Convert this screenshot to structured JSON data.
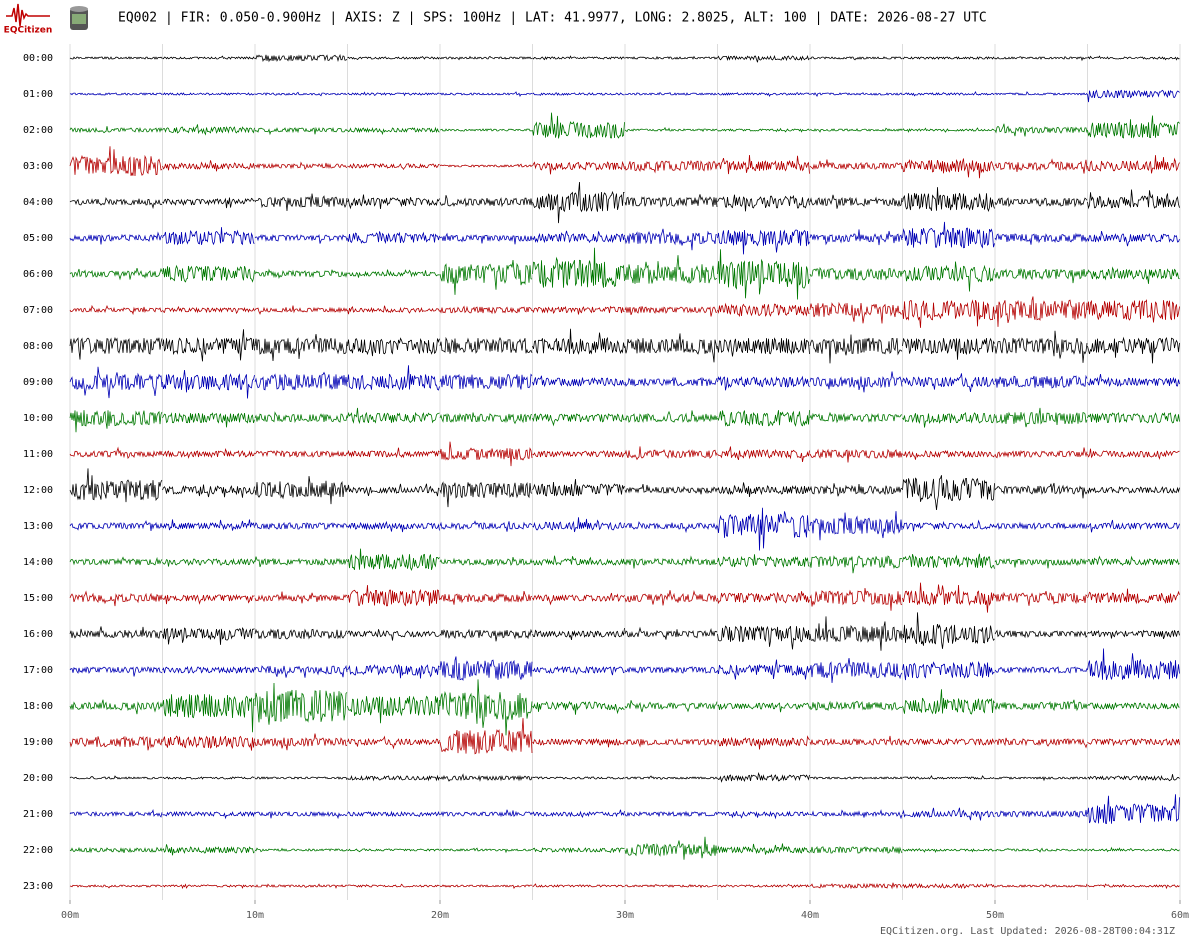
{
  "chart_data": {
    "type": "helicorder",
    "title": "EQ002 | FIR: 0.050-0.900Hz | AXIS: Z | SPS: 100Hz | LAT: 41.9977, LONG: 2.8025, ALT: 100 | DATE: 2026-08-27 UTC",
    "logo_text": "EQCitizen",
    "footer": "EQCitizen.org. Last Updated: 2026-08-28T00:04:31Z",
    "xlim": [
      0,
      60
    ],
    "xticks": [
      {
        "value": 0,
        "label": "00m"
      },
      {
        "value": 10,
        "label": "10m"
      },
      {
        "value": 20,
        "label": "20m"
      },
      {
        "value": 30,
        "label": "30m"
      },
      {
        "value": 40,
        "label": "40m"
      },
      {
        "value": 50,
        "label": "50m"
      },
      {
        "value": 60,
        "label": "60m"
      }
    ],
    "x": [
      0,
      5,
      10,
      15,
      20,
      25,
      30,
      35,
      40,
      45,
      50,
      55
    ],
    "grid": true,
    "series": [
      {
        "name": "00:00",
        "color": "#000000",
        "values": [
          1,
          1,
          3,
          1,
          1,
          1,
          1,
          2,
          1,
          1,
          1,
          1
        ]
      },
      {
        "name": "01:00",
        "color": "#0000b4",
        "values": [
          1,
          1,
          1,
          1,
          1,
          1,
          1,
          1,
          1,
          1,
          1,
          4
        ]
      },
      {
        "name": "02:00",
        "color": "#007800",
        "values": [
          2,
          3,
          2,
          2,
          1,
          8,
          1,
          1,
          1,
          1,
          3,
          8
        ]
      },
      {
        "name": "03:00",
        "color": "#b40000",
        "values": [
          10,
          3,
          2,
          2,
          1,
          4,
          5,
          5,
          3,
          6,
          4,
          5
        ]
      },
      {
        "name": "04:00",
        "color": "#000000",
        "values": [
          3,
          3,
          5,
          4,
          4,
          10,
          5,
          6,
          4,
          9,
          4,
          6
        ]
      },
      {
        "name": "05:00",
        "color": "#0000b4",
        "values": [
          3,
          7,
          3,
          5,
          3,
          4,
          6,
          8,
          4,
          10,
          4,
          4
        ]
      },
      {
        "name": "06:00",
        "color": "#007800",
        "values": [
          3,
          8,
          3,
          2,
          10,
          14,
          10,
          14,
          6,
          8,
          5,
          5
        ]
      },
      {
        "name": "07:00",
        "color": "#b40000",
        "values": [
          2,
          2,
          2,
          2,
          3,
          3,
          3,
          6,
          7,
          10,
          10,
          10
        ]
      },
      {
        "name": "08:00",
        "color": "#000000",
        "values": [
          8,
          8,
          8,
          8,
          8,
          8,
          8,
          8,
          8,
          8,
          8,
          8
        ]
      },
      {
        "name": "09:00",
        "color": "#0000b4",
        "values": [
          8,
          8,
          8,
          8,
          8,
          4,
          4,
          5,
          5,
          5,
          6,
          4
        ]
      },
      {
        "name": "10:00",
        "color": "#007800",
        "values": [
          8,
          5,
          4,
          5,
          4,
          4,
          4,
          8,
          4,
          5,
          6,
          5
        ]
      },
      {
        "name": "11:00",
        "color": "#b40000",
        "values": [
          3,
          3,
          3,
          3,
          6,
          3,
          4,
          4,
          4,
          3,
          3,
          3
        ]
      },
      {
        "name": "12:00",
        "color": "#000000",
        "values": [
          10,
          4,
          8,
          3,
          8,
          6,
          3,
          4,
          4,
          12,
          4,
          3
        ]
      },
      {
        "name": "13:00",
        "color": "#0000b4",
        "values": [
          3,
          3,
          3,
          3,
          3,
          4,
          3,
          12,
          8,
          3,
          3,
          3
        ]
      },
      {
        "name": "14:00",
        "color": "#007800",
        "values": [
          3,
          3,
          3,
          8,
          3,
          3,
          3,
          5,
          6,
          6,
          3,
          3
        ]
      },
      {
        "name": "15:00",
        "color": "#b40000",
        "values": [
          4,
          3,
          3,
          8,
          4,
          3,
          4,
          5,
          7,
          7,
          5,
          5
        ]
      },
      {
        "name": "16:00",
        "color": "#000000",
        "values": [
          4,
          6,
          5,
          3,
          4,
          3,
          3,
          8,
          8,
          10,
          3,
          3
        ]
      },
      {
        "name": "17:00",
        "color": "#0000b4",
        "values": [
          3,
          3,
          4,
          5,
          10,
          3,
          3,
          5,
          8,
          8,
          3,
          10
        ]
      },
      {
        "name": "18:00",
        "color": "#007800",
        "values": [
          4,
          12,
          16,
          10,
          14,
          4,
          3,
          3,
          4,
          8,
          4,
          3
        ]
      },
      {
        "name": "19:00",
        "color": "#b40000",
        "values": [
          5,
          6,
          4,
          3,
          12,
          3,
          3,
          4,
          3,
          3,
          3,
          3
        ]
      },
      {
        "name": "20:00",
        "color": "#000000",
        "values": [
          1,
          1,
          1,
          2,
          2,
          1,
          1,
          3,
          1,
          1,
          1,
          2
        ]
      },
      {
        "name": "21:00",
        "color": "#0000b4",
        "values": [
          2,
          2,
          2,
          2,
          2,
          2,
          2,
          2,
          2,
          3,
          3,
          10
        ]
      },
      {
        "name": "22:00",
        "color": "#007800",
        "values": [
          2,
          3,
          1,
          1,
          1,
          2,
          6,
          3,
          3,
          1,
          1,
          1
        ]
      },
      {
        "name": "23:00",
        "color": "#b40000",
        "values": [
          1,
          1,
          1,
          1,
          1,
          1,
          1,
          1,
          2,
          2,
          1,
          1
        ]
      }
    ]
  }
}
